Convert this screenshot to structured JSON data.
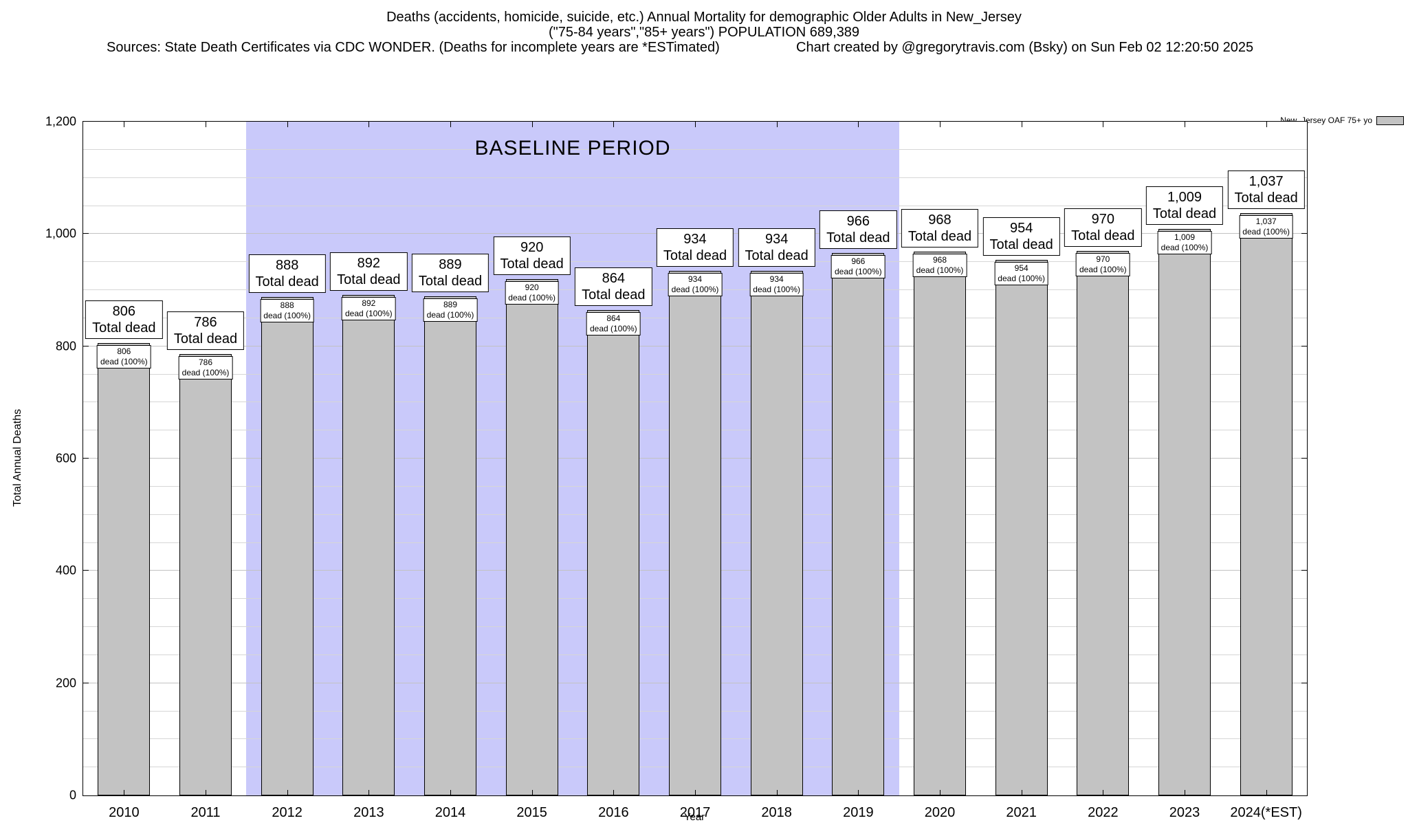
{
  "header": {
    "title_line1": "Deaths (accidents, homicide, suicide, etc.) Annual Mortality for demographic Older Adults in New_Jersey",
    "title_line2": "(\"75-84 years\",\"85+ years\") POPULATION 689,389",
    "sources": "Sources: State Death Certificates via CDC WONDER. (Deaths for incomplete years are *ESTimated)",
    "credit": "Chart created by @gregorytravis.com (Bsky) on Sun Feb 02 12:20:50 2025"
  },
  "chart_data": {
    "type": "bar",
    "title": "Deaths (accidents, homicide, suicide, etc.) Annual Mortality for demographic Older Adults in New_Jersey",
    "subtitle": "(\"75-84 years\",\"85+ years\") POPULATION 689,389",
    "xlabel": "Year",
    "ylabel": "Total Annual Deaths",
    "ylim": [
      0,
      1200
    ],
    "ytick_interval": 200,
    "minor_gridline_interval": 50,
    "ytick_labels": [
      "0",
      "200",
      "400",
      "600",
      "800",
      "1,000",
      "1,200"
    ],
    "categories": [
      "2010",
      "2011",
      "2012",
      "2013",
      "2014",
      "2015",
      "2016",
      "2017",
      "2018",
      "2019",
      "2020",
      "2021",
      "2022",
      "2023",
      "2024(*EST)"
    ],
    "values": [
      806,
      786,
      888,
      892,
      889,
      920,
      864,
      934,
      934,
      966,
      968,
      954,
      970,
      1009,
      1037
    ],
    "value_labels": [
      "806",
      "786",
      "888",
      "892",
      "889",
      "920",
      "864",
      "934",
      "934",
      "966",
      "968",
      "954",
      "970",
      "1,009",
      "1,037"
    ],
    "bar_label_suffix": "Total dead",
    "bar_sublabel_suffix": "dead (100%)",
    "bar_color": "#c3c3c3",
    "grid": true,
    "baseline": {
      "label": "BASELINE PERIOD",
      "start_category": "2012",
      "end_category": "2019",
      "start_index": 2,
      "end_index": 9,
      "color": "#c9c9fa"
    },
    "legend": {
      "label": "New_Jersey OAF 75+ yo",
      "position": "top-right"
    }
  }
}
